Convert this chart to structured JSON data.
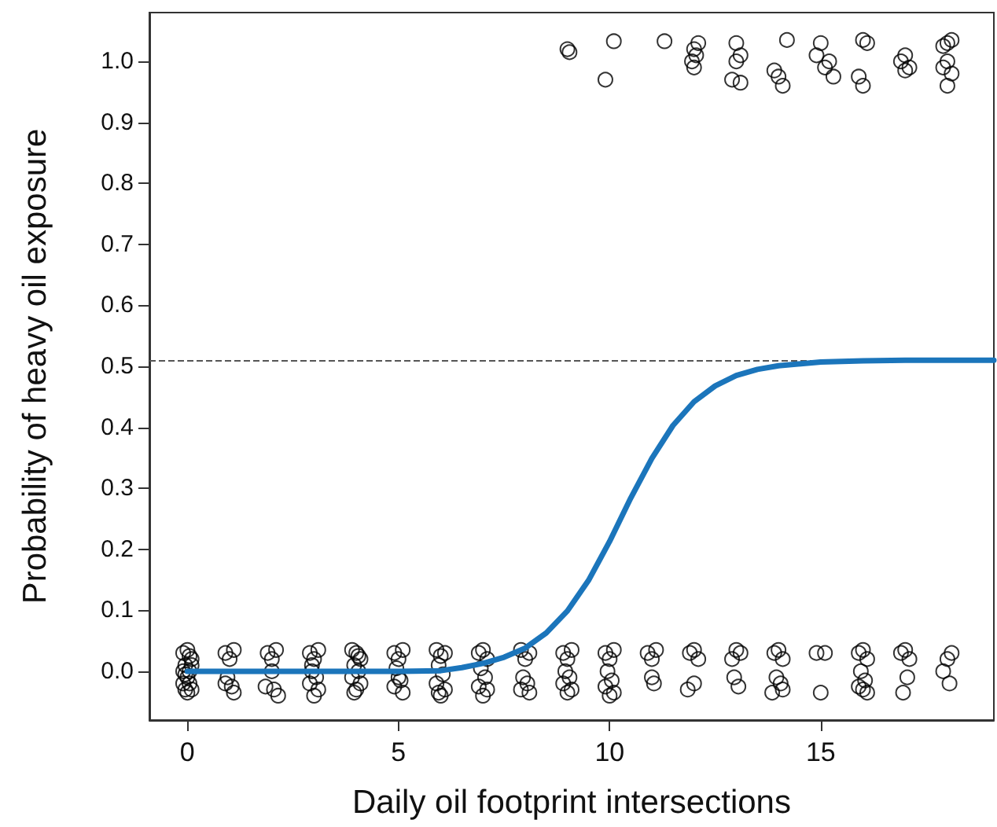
{
  "chart_data": {
    "type": "scatter",
    "xlabel": "Daily oil footprint intersections",
    "ylabel": "Probability of heavy oil exposure",
    "xlim": [
      -0.9,
      19.1
    ],
    "ylim": [
      -0.08,
      1.08
    ],
    "xticks": [
      0,
      5,
      10,
      15
    ],
    "yticks": [
      {
        "value": 0,
        "label": "0.0"
      },
      {
        "value": 0.1,
        "label": "0.1"
      },
      {
        "value": 0.2,
        "label": "0.2"
      },
      {
        "value": 0.3,
        "label": "0.3"
      },
      {
        "value": 0.4,
        "label": "0.4"
      },
      {
        "value": 0.5,
        "label": "0.5"
      },
      {
        "value": 0.6,
        "label": "0.6"
      },
      {
        "value": 0.7,
        "label": "0.7"
      },
      {
        "value": 0.8,
        "label": "0.8"
      },
      {
        "value": 0.9,
        "label": "0.9"
      },
      {
        "value": 1,
        "label": "1.0"
      }
    ],
    "grid": false,
    "ref_lines": [
      {
        "axis": "y",
        "value": 0.51,
        "color": "#555555",
        "line_style": "dashed"
      }
    ],
    "series": [
      {
        "color": "#000000",
        "marker": "circle",
        "x": [
          9.0,
          9.05,
          10.1,
          9.9,
          11.3,
          12.0,
          12.1,
          12.0,
          11.95,
          12.05,
          13.0,
          13.1,
          13.0,
          12.9,
          13.1,
          14.2,
          13.9,
          14.0,
          14.1,
          15.0,
          15.2,
          15.1,
          15.3,
          14.9,
          16.1,
          16.0,
          15.9,
          16.0,
          17.0,
          17.1,
          16.9,
          17.0,
          17.9,
          18.0,
          18.1,
          17.9,
          18.0,
          18.1,
          18.0,
          -0.1,
          0,
          0.1,
          -0.05,
          0.05,
          0,
          -0.1,
          0.1,
          0,
          0.05,
          -0.05,
          0.1,
          -0.1,
          0.05,
          -0.05,
          0.9,
          1.0,
          1.1,
          0.95,
          1.05,
          1.1,
          0.9,
          1.9,
          2.0,
          2.1,
          2.0,
          1.85,
          2.05,
          2.15,
          2.9,
          3.0,
          3.1,
          2.95,
          3.05,
          2.9,
          3.1,
          3.0,
          2.95,
          3.9,
          4.0,
          4.1,
          3.95,
          4.05,
          3.9,
          4.1,
          4.0,
          3.95,
          4.05,
          4.9,
          5.0,
          5.1,
          4.95,
          5.05,
          4.9,
          5.1,
          5.0,
          5.9,
          6.0,
          6.1,
          5.95,
          6.05,
          5.9,
          6.1,
          6.0,
          5.95,
          6.9,
          7.0,
          7.1,
          6.95,
          7.05,
          6.9,
          7.1,
          7.0,
          7.9,
          8.0,
          8.1,
          7.95,
          8.05,
          7.9,
          8.1,
          8.9,
          9.0,
          9.1,
          8.95,
          9.05,
          8.9,
          9.1,
          9.0,
          9.9,
          10.0,
          10.1,
          9.95,
          10.05,
          9.9,
          10.1,
          10.0,
          10.9,
          11.0,
          11.1,
          11.0,
          11.05,
          11.9,
          12.0,
          12.1,
          11.85,
          12.0,
          12.9,
          13.0,
          13.1,
          12.95,
          13.05,
          13.9,
          14.0,
          14.1,
          13.95,
          14.05,
          14.1,
          13.85,
          14.9,
          15.1,
          15.0,
          15.9,
          16.0,
          16.1,
          15.95,
          16.05,
          15.9,
          16.1,
          16.0,
          16.9,
          17.0,
          17.1,
          17.05,
          16.95,
          17.9,
          18.0,
          18.1,
          18.05
        ],
        "values": [
          1.02,
          1.015,
          1.033,
          0.97,
          1.033,
          1.02,
          1.03,
          0.99,
          1.0,
          1.01,
          1.03,
          1.01,
          1.0,
          0.97,
          0.965,
          1.035,
          0.985,
          0.975,
          0.96,
          1.03,
          1.0,
          0.99,
          0.975,
          1.01,
          1.03,
          1.035,
          0.975,
          0.96,
          1.01,
          0.99,
          1.0,
          0.985,
          1.025,
          1.03,
          1.035,
          0.99,
          1.0,
          0.98,
          0.96,
          0.03,
          0.035,
          0.02,
          0.01,
          0.0,
          -0.01,
          -0.02,
          -0.03,
          -0.035,
          0.025,
          -0.005,
          0.01,
          0.0,
          -0.02,
          -0.03,
          0.03,
          0.02,
          0.035,
          -0.01,
          -0.025,
          -0.035,
          -0.02,
          0.03,
          0.02,
          0.035,
          0.0,
          -0.025,
          -0.03,
          -0.04,
          0.03,
          0.02,
          0.035,
          0.01,
          -0.01,
          -0.02,
          -0.03,
          -0.04,
          0.0,
          0.035,
          0.03,
          0.02,
          0.01,
          0.0,
          -0.01,
          -0.02,
          -0.03,
          -0.035,
          0.025,
          0.03,
          0.02,
          0.035,
          0.005,
          -0.015,
          -0.025,
          -0.035,
          -0.01,
          0.035,
          0.025,
          0.03,
          0.01,
          -0.005,
          -0.02,
          -0.03,
          -0.04,
          -0.035,
          0.03,
          0.035,
          0.02,
          0.005,
          -0.01,
          -0.025,
          -0.03,
          -0.04,
          0.035,
          0.02,
          0.03,
          -0.01,
          -0.02,
          -0.03,
          -0.035,
          0.03,
          0.02,
          0.035,
          0.0,
          -0.01,
          -0.02,
          -0.03,
          -0.035,
          0.03,
          0.02,
          0.035,
          0.0,
          -0.015,
          -0.025,
          -0.035,
          -0.04,
          0.03,
          0.02,
          0.035,
          -0.01,
          -0.02,
          0.03,
          0.035,
          0.02,
          -0.03,
          -0.02,
          0.02,
          0.035,
          0.03,
          -0.01,
          -0.025,
          0.03,
          0.035,
          0.02,
          -0.01,
          -0.02,
          -0.03,
          -0.035,
          0.03,
          0.03,
          -0.035,
          0.03,
          0.035,
          0.02,
          0.0,
          -0.015,
          -0.025,
          -0.035,
          -0.03,
          0.03,
          0.035,
          0.02,
          -0.01,
          -0.035,
          0.0,
          0.02,
          0.03,
          -0.02
        ]
      },
      {
        "type": "line",
        "color": "#1b75bb",
        "marker": "none",
        "line_style": "solid",
        "x": [
          0,
          1,
          2,
          3,
          4,
          5,
          6,
          6.5,
          7,
          7.5,
          8,
          8.5,
          9,
          9.5,
          10,
          10.5,
          11,
          11.5,
          12,
          12.5,
          13,
          13.5,
          14,
          15,
          16,
          17,
          19.1
        ],
        "values": [
          0,
          0,
          0,
          0,
          0,
          0,
          0.001,
          0.006,
          0.013,
          0.023,
          0.038,
          0.063,
          0.099,
          0.149,
          0.213,
          0.284,
          0.349,
          0.403,
          0.442,
          0.468,
          0.485,
          0.495,
          0.501,
          0.507,
          0.509,
          0.51,
          0.51
        ]
      }
    ]
  }
}
